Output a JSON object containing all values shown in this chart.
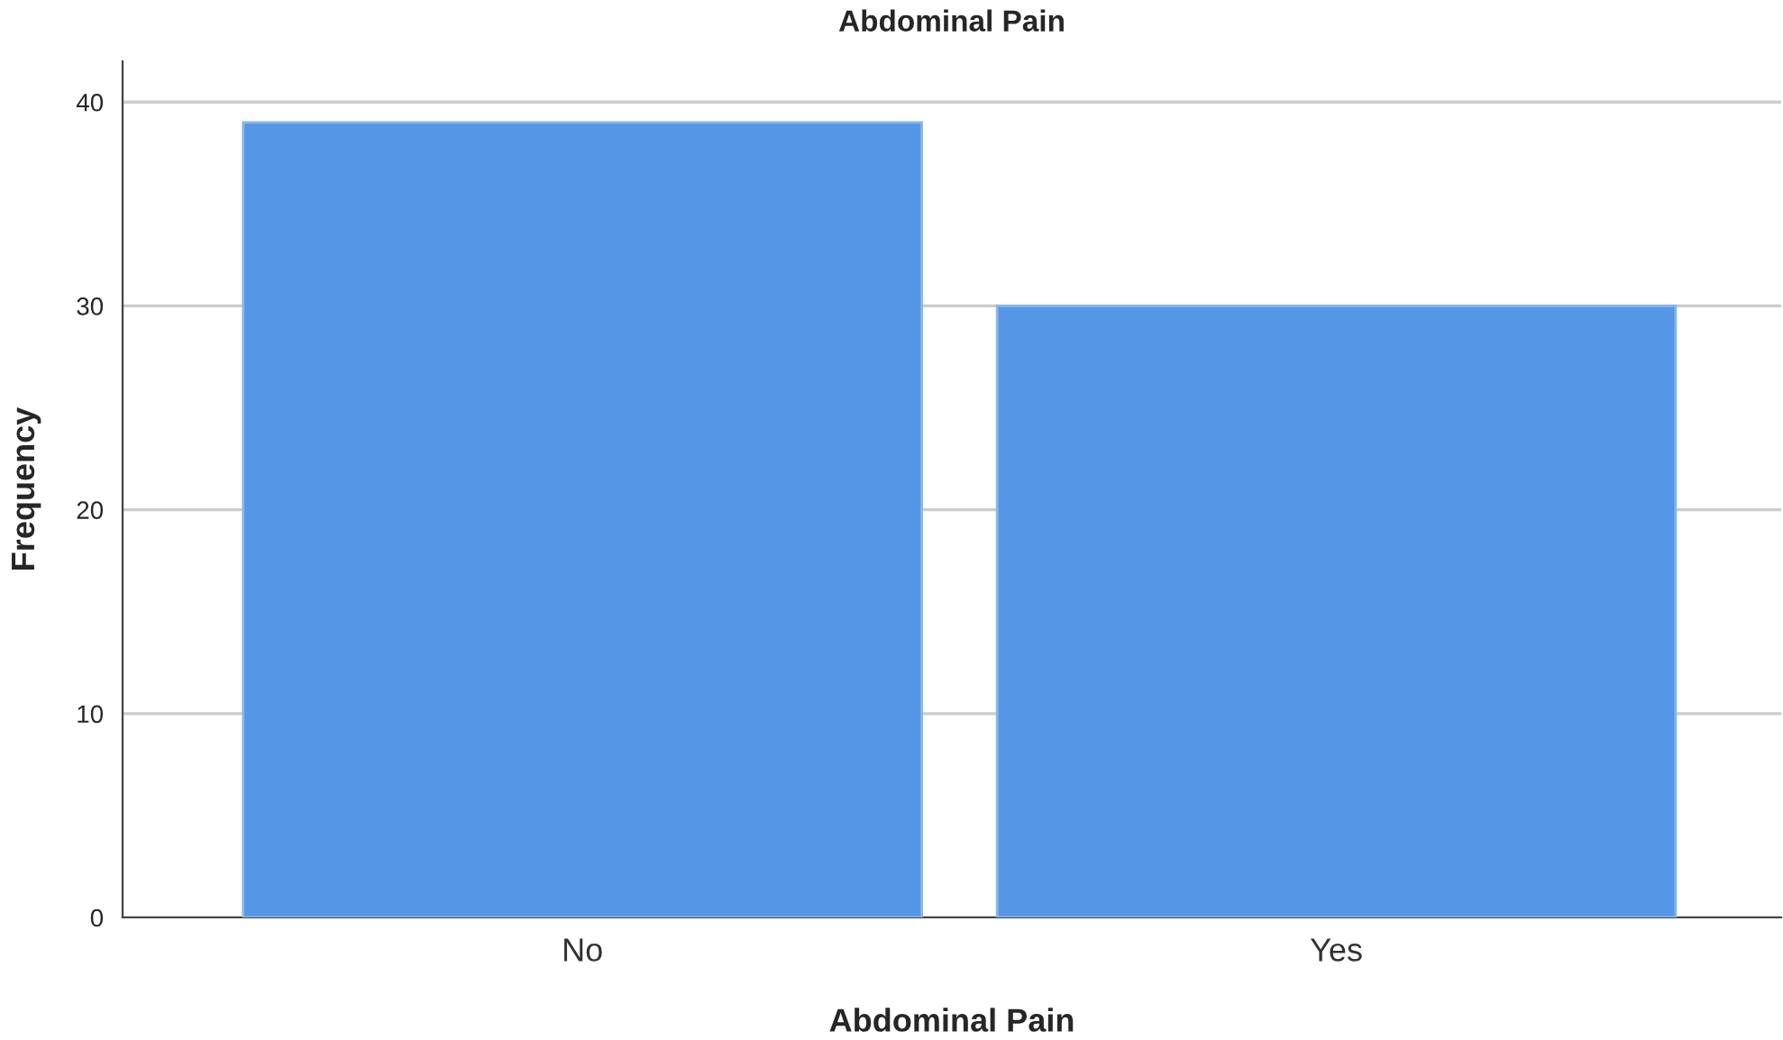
{
  "chart_data": {
    "type": "bar",
    "title": "Abdominal Pain",
    "xlabel": "Abdominal Pain",
    "ylabel": "Frequency",
    "categories": [
      "No",
      "Yes"
    ],
    "values": [
      39,
      30
    ],
    "color": "#5596e6",
    "ylim": [
      0,
      42
    ],
    "yticks": [
      0,
      10,
      20,
      30,
      40
    ],
    "grid": "y"
  }
}
